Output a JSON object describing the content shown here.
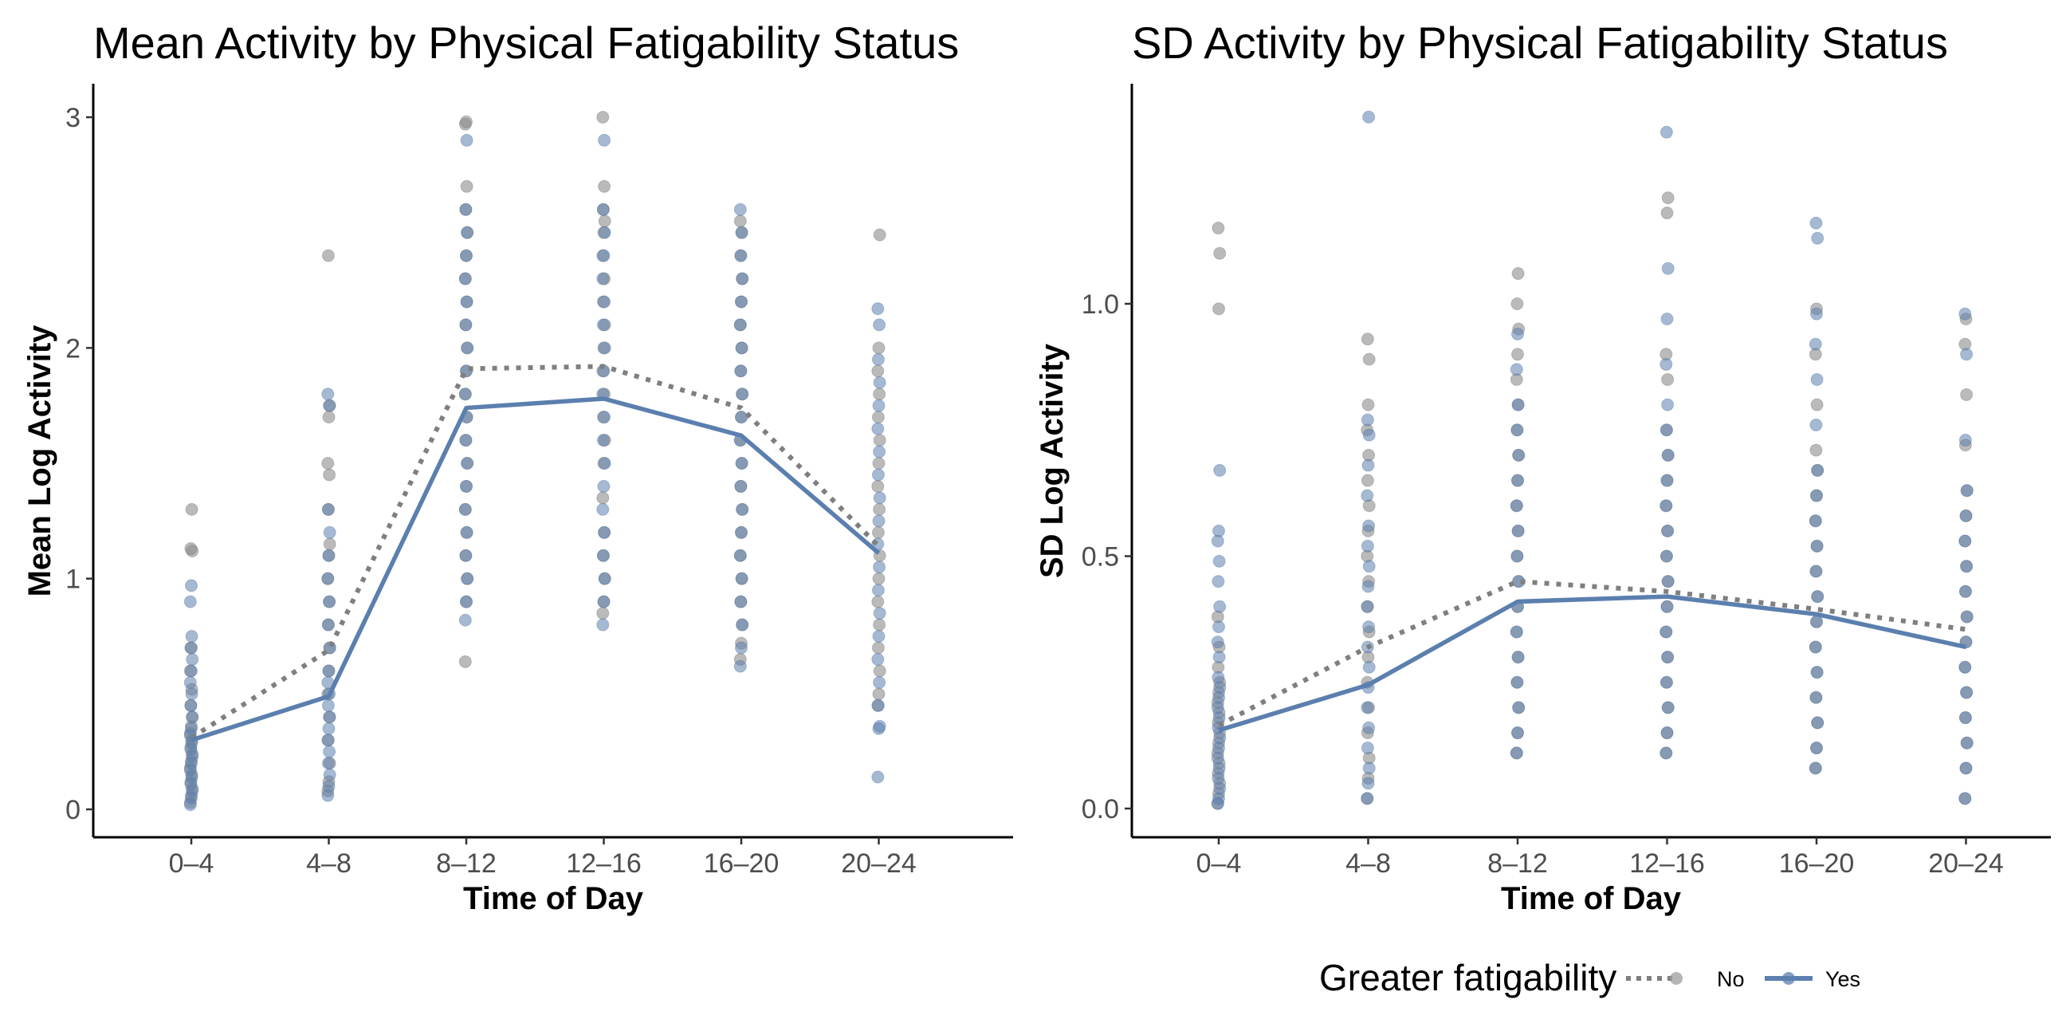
{
  "chart_data": [
    {
      "type": "line",
      "title": "Mean Activity by Physical Fatigability Status",
      "xlabel": "Time of Day",
      "ylabel": "Mean Log Activity",
      "categories": [
        "0–4",
        "4–8",
        "8–12",
        "12–16",
        "16–20",
        "20–24"
      ],
      "ylim": [
        -0.12,
        3.15
      ],
      "yticks": [
        0,
        1,
        2,
        3
      ],
      "ytick_labels": [
        "0",
        "1",
        "2",
        "3"
      ],
      "grid": false,
      "series": [
        {
          "name": "No",
          "line_style": "dotted",
          "color": "#7f7f7f",
          "values": [
            0.31,
            0.69,
            1.91,
            1.92,
            1.74,
            1.14
          ]
        },
        {
          "name": "Yes",
          "line_style": "solid",
          "color": "#5b7fae",
          "values": [
            0.3,
            0.49,
            1.74,
            1.78,
            1.62,
            1.11
          ]
        }
      ],
      "points": {
        "note_ranges": "observed spread per category",
        "No": [
          [
            0.03,
            0.06,
            0.09,
            0.12,
            0.15,
            0.18,
            0.21,
            0.24,
            0.27,
            0.3,
            0.33,
            0.36,
            0.4,
            0.45,
            0.52,
            0.6,
            0.7,
            1.12,
            1.13,
            1.3
          ],
          [
            0.08,
            0.12,
            0.2,
            0.3,
            0.4,
            0.5,
            0.6,
            0.7,
            0.8,
            0.9,
            1.0,
            1.1,
            1.15,
            1.3,
            1.45,
            1.5,
            1.7,
            1.75,
            2.4
          ],
          [
            0.64,
            0.9,
            1.0,
            1.1,
            1.2,
            1.3,
            1.4,
            1.5,
            1.6,
            1.7,
            1.8,
            1.9,
            2.0,
            2.1,
            2.2,
            2.3,
            2.4,
            2.5,
            2.6,
            2.7,
            2.97,
            2.98
          ],
          [
            0.85,
            0.9,
            1.0,
            1.1,
            1.2,
            1.35,
            1.5,
            1.6,
            1.7,
            1.8,
            1.9,
            2.0,
            2.1,
            2.2,
            2.3,
            2.4,
            2.5,
            2.55,
            2.6,
            2.7,
            3.0
          ],
          [
            0.65,
            0.72,
            0.8,
            0.9,
            1.0,
            1.1,
            1.2,
            1.3,
            1.4,
            1.5,
            1.6,
            1.7,
            1.8,
            1.9,
            2.0,
            2.1,
            2.2,
            2.3,
            2.4,
            2.5,
            2.55
          ],
          [
            0.45,
            0.5,
            0.6,
            0.7,
            0.8,
            0.9,
            1.0,
            1.1,
            1.2,
            1.3,
            1.4,
            1.5,
            1.6,
            1.7,
            1.8,
            1.9,
            2.0,
            2.49
          ]
        ],
        "Yes": [
          [
            0.02,
            0.05,
            0.08,
            0.11,
            0.14,
            0.17,
            0.2,
            0.23,
            0.26,
            0.29,
            0.32,
            0.35,
            0.4,
            0.45,
            0.5,
            0.55,
            0.6,
            0.65,
            0.7,
            0.75,
            0.9,
            0.97
          ],
          [
            0.06,
            0.1,
            0.15,
            0.2,
            0.25,
            0.3,
            0.35,
            0.4,
            0.45,
            0.5,
            0.55,
            0.6,
            0.7,
            0.8,
            0.9,
            1.0,
            1.1,
            1.2,
            1.3,
            1.75,
            1.8
          ],
          [
            0.82,
            0.9,
            1.0,
            1.1,
            1.2,
            1.3,
            1.4,
            1.5,
            1.6,
            1.7,
            1.8,
            1.9,
            2.0,
            2.1,
            2.2,
            2.3,
            2.4,
            2.5,
            2.6,
            2.9
          ],
          [
            0.8,
            0.9,
            1.0,
            1.1,
            1.2,
            1.3,
            1.4,
            1.5,
            1.6,
            1.7,
            1.8,
            1.9,
            2.0,
            2.1,
            2.2,
            2.3,
            2.4,
            2.5,
            2.6,
            2.9
          ],
          [
            0.62,
            0.7,
            0.8,
            0.9,
            1.0,
            1.1,
            1.2,
            1.3,
            1.4,
            1.5,
            1.6,
            1.7,
            1.8,
            1.9,
            2.0,
            2.1,
            2.2,
            2.3,
            2.4,
            2.5,
            2.6
          ],
          [
            0.14,
            0.35,
            0.36,
            0.45,
            0.55,
            0.65,
            0.75,
            0.85,
            0.95,
            1.05,
            1.15,
            1.25,
            1.35,
            1.45,
            1.55,
            1.65,
            1.75,
            1.85,
            1.95,
            2.1,
            2.17
          ]
        ]
      }
    },
    {
      "type": "line",
      "title": "SD Activity by Physical Fatigability Status",
      "xlabel": "Time of Day",
      "ylabel": "SD Log Activity",
      "categories": [
        "0–4",
        "4–8",
        "8–12",
        "12–16",
        "16–20",
        "20–24"
      ],
      "ylim": [
        -0.055,
        1.44
      ],
      "yticks": [
        0.0,
        0.5,
        1.0
      ],
      "ytick_labels": [
        "0.0",
        "0.5",
        "1.0"
      ],
      "grid": false,
      "series": [
        {
          "name": "No",
          "line_style": "dotted",
          "color": "#7f7f7f",
          "values": [
            0.165,
            0.32,
            0.45,
            0.43,
            0.395,
            0.355
          ]
        },
        {
          "name": "Yes",
          "line_style": "solid",
          "color": "#5b7fae",
          "values": [
            0.155,
            0.245,
            0.41,
            0.42,
            0.385,
            0.32
          ]
        }
      ],
      "points": {
        "No": [
          [
            0.01,
            0.03,
            0.05,
            0.07,
            0.09,
            0.11,
            0.13,
            0.15,
            0.17,
            0.19,
            0.21,
            0.23,
            0.25,
            0.28,
            0.32,
            0.38,
            0.99,
            1.1,
            1.15
          ],
          [
            0.02,
            0.06,
            0.1,
            0.15,
            0.2,
            0.25,
            0.3,
            0.35,
            0.4,
            0.45,
            0.5,
            0.55,
            0.6,
            0.65,
            0.7,
            0.75,
            0.8,
            0.89,
            0.93
          ],
          [
            0.11,
            0.15,
            0.2,
            0.25,
            0.3,
            0.35,
            0.4,
            0.45,
            0.5,
            0.55,
            0.6,
            0.65,
            0.7,
            0.75,
            0.8,
            0.85,
            0.9,
            0.95,
            1.0,
            1.06
          ],
          [
            0.11,
            0.15,
            0.2,
            0.25,
            0.3,
            0.35,
            0.4,
            0.45,
            0.5,
            0.55,
            0.6,
            0.65,
            0.7,
            0.75,
            0.85,
            0.9,
            1.18,
            1.21
          ],
          [
            0.08,
            0.12,
            0.17,
            0.22,
            0.27,
            0.32,
            0.37,
            0.42,
            0.47,
            0.52,
            0.57,
            0.62,
            0.67,
            0.71,
            0.8,
            0.9,
            0.99
          ],
          [
            0.02,
            0.08,
            0.13,
            0.18,
            0.23,
            0.28,
            0.33,
            0.38,
            0.43,
            0.48,
            0.53,
            0.58,
            0.63,
            0.72,
            0.82,
            0.92,
            0.97
          ]
        ],
        "Yes": [
          [
            0.01,
            0.02,
            0.04,
            0.06,
            0.08,
            0.1,
            0.12,
            0.14,
            0.16,
            0.18,
            0.2,
            0.22,
            0.24,
            0.26,
            0.3,
            0.33,
            0.36,
            0.4,
            0.45,
            0.49,
            0.53,
            0.55,
            0.67
          ],
          [
            0.02,
            0.05,
            0.08,
            0.12,
            0.16,
            0.2,
            0.24,
            0.28,
            0.32,
            0.36,
            0.4,
            0.44,
            0.48,
            0.52,
            0.56,
            0.62,
            0.68,
            0.74,
            0.77,
            1.37
          ],
          [
            0.11,
            0.15,
            0.2,
            0.25,
            0.3,
            0.35,
            0.4,
            0.45,
            0.5,
            0.55,
            0.6,
            0.65,
            0.7,
            0.75,
            0.8,
            0.87,
            0.94
          ],
          [
            0.11,
            0.15,
            0.2,
            0.25,
            0.3,
            0.35,
            0.4,
            0.45,
            0.5,
            0.55,
            0.6,
            0.65,
            0.7,
            0.75,
            0.8,
            0.88,
            0.97,
            1.07,
            1.34
          ],
          [
            0.08,
            0.12,
            0.17,
            0.22,
            0.27,
            0.32,
            0.37,
            0.42,
            0.47,
            0.52,
            0.57,
            0.62,
            0.67,
            0.76,
            0.85,
            0.92,
            0.98,
            1.13,
            1.16
          ],
          [
            0.02,
            0.08,
            0.13,
            0.18,
            0.23,
            0.28,
            0.33,
            0.38,
            0.43,
            0.48,
            0.53,
            0.58,
            0.63,
            0.73,
            0.9,
            0.98
          ]
        ]
      }
    }
  ],
  "legend": {
    "title": "Greater fatigability",
    "items": [
      {
        "label": "No",
        "color": "#7f7f7f",
        "line_style": "dotted"
      },
      {
        "label": "Yes",
        "color": "#5b7fae",
        "line_style": "solid"
      }
    ]
  }
}
